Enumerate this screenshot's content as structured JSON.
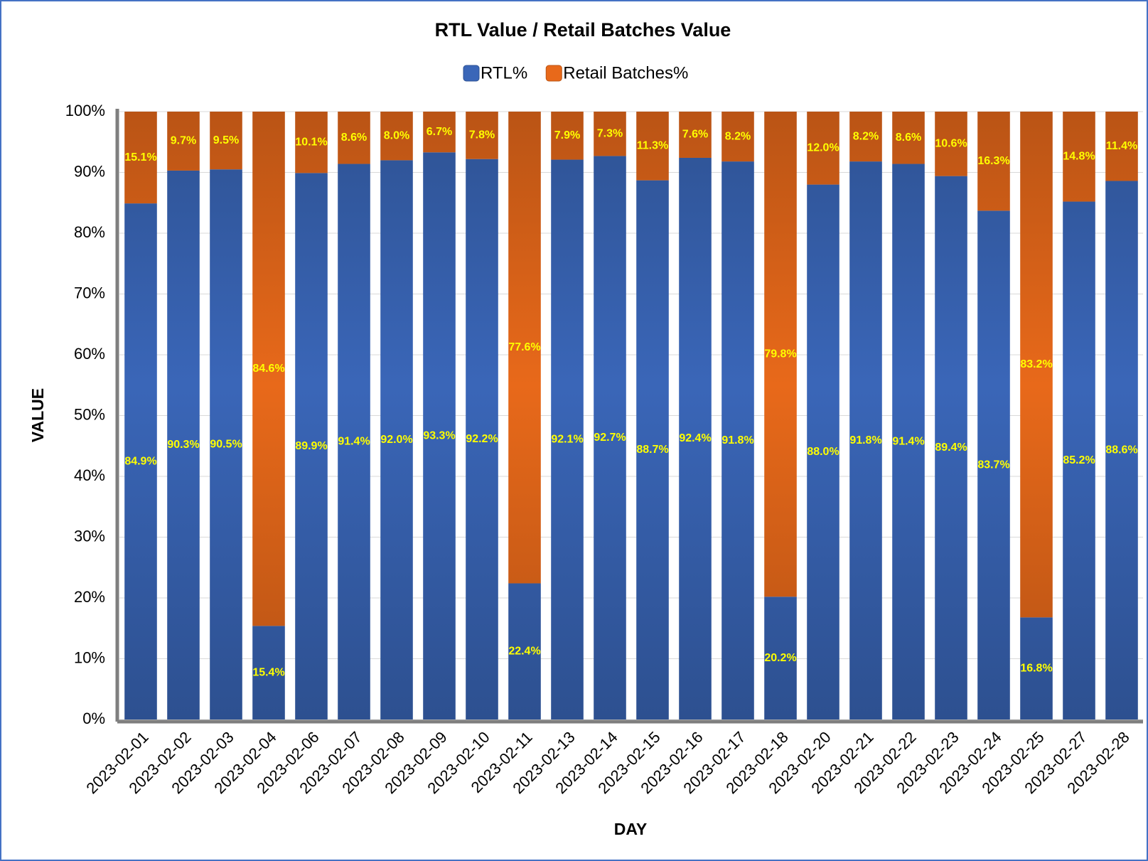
{
  "chart_data": {
    "type": "bar",
    "stacked": true,
    "title": "RTL Value / Retail Batches Value",
    "x_label": "DAY",
    "y_label": "VALUE",
    "categories": [
      "2023-02-01",
      "2023-02-02",
      "2023-02-03",
      "2023-02-04",
      "2023-02-06",
      "2023-02-07",
      "2023-02-08",
      "2023-02-09",
      "2023-02-10",
      "2023-02-11",
      "2023-02-13",
      "2023-02-14",
      "2023-02-15",
      "2023-02-16",
      "2023-02-17",
      "2023-02-18",
      "2023-02-20",
      "2023-02-21",
      "2023-02-22",
      "2023-02-23",
      "2023-02-24",
      "2023-02-25",
      "2023-02-27",
      "2023-02-28"
    ],
    "series": [
      {
        "name": "RTL%",
        "color": "#3a66b8",
        "values": [
          84.9,
          90.3,
          90.5,
          15.4,
          89.9,
          91.4,
          92.0,
          93.3,
          92.2,
          22.4,
          92.1,
          92.7,
          88.7,
          92.4,
          91.8,
          20.2,
          88.0,
          91.8,
          91.4,
          89.4,
          83.7,
          16.8,
          85.2,
          88.6
        ],
        "value_labels": [
          "84.9%",
          "90.3%",
          "90.5%",
          "15.4%",
          "89.9%",
          "91.4%",
          "92.0%",
          "93.3%",
          "92.2%",
          "22.4%",
          "92.1%",
          "92.7%",
          "88.7%",
          "92.4%",
          "91.8%",
          "20.2%",
          "88.0%",
          "91.8%",
          "91.4%",
          "89.4%",
          "83.7%",
          "16.8%",
          "85.2%",
          "88.6%"
        ]
      },
      {
        "name": "Retail Batches%",
        "color": "#e8691a",
        "values": [
          15.1,
          9.7,
          9.5,
          84.6,
          10.1,
          8.6,
          8.0,
          6.7,
          7.8,
          77.6,
          7.9,
          7.3,
          11.3,
          7.6,
          8.2,
          79.8,
          12.0,
          8.2,
          8.6,
          10.6,
          16.3,
          83.2,
          14.8,
          11.4
        ],
        "value_labels": [
          "15.1%",
          "9.7%",
          "9.5%",
          "84.6%",
          "10.1%",
          "8.6%",
          "8.0%",
          "6.7%",
          "7.8%",
          "77.6%",
          "7.9%",
          "7.3%",
          "11.3%",
          "7.6%",
          "8.2%",
          "79.8%",
          "12.0%",
          "8.2%",
          "8.6%",
          "10.6%",
          "16.3%",
          "83.2%",
          "14.8%",
          "11.4%"
        ]
      }
    ],
    "ylim": [
      0,
      100
    ],
    "yticks": [
      {
        "value": 0,
        "label": "0%"
      },
      {
        "value": 10,
        "label": "10%"
      },
      {
        "value": 20,
        "label": "20%"
      },
      {
        "value": 30,
        "label": "30%"
      },
      {
        "value": 40,
        "label": "40%"
      },
      {
        "value": 50,
        "label": "50%"
      },
      {
        "value": 60,
        "label": "60%"
      },
      {
        "value": 70,
        "label": "70%"
      },
      {
        "value": 80,
        "label": "80%"
      },
      {
        "value": 90,
        "label": "90%"
      },
      {
        "value": 100,
        "label": "100%"
      }
    ],
    "grid": true,
    "legend": "top"
  }
}
